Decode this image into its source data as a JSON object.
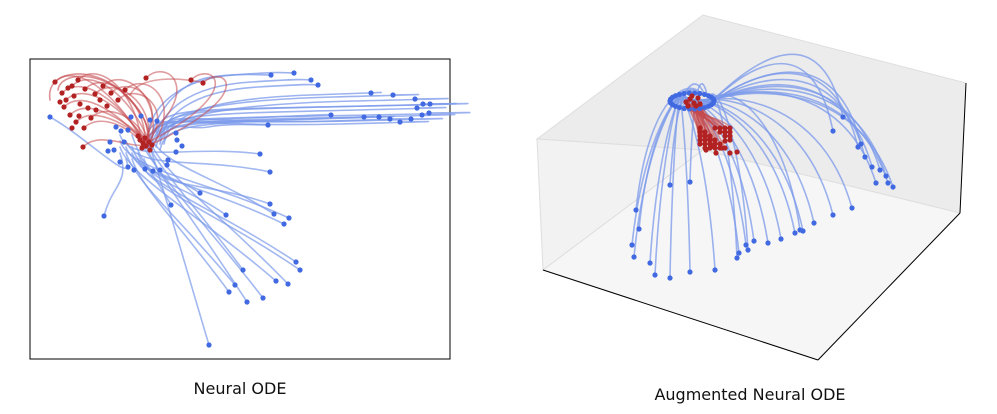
{
  "panels": [
    {
      "caption": "Neural ODE"
    },
    {
      "caption": "Augmented Neural ODE"
    }
  ],
  "colors": {
    "class_blue": "#4169e1",
    "class_blue_line": "#7b9aeb",
    "class_red": "#b22222",
    "class_red_line": "#c4484c",
    "frame": "#000000",
    "pane_back": "#ececec",
    "pane_side": "#f2f2f2",
    "pane_floor": "#f6f6f6",
    "pane_edge": "#dedede"
  },
  "icons": {}
}
